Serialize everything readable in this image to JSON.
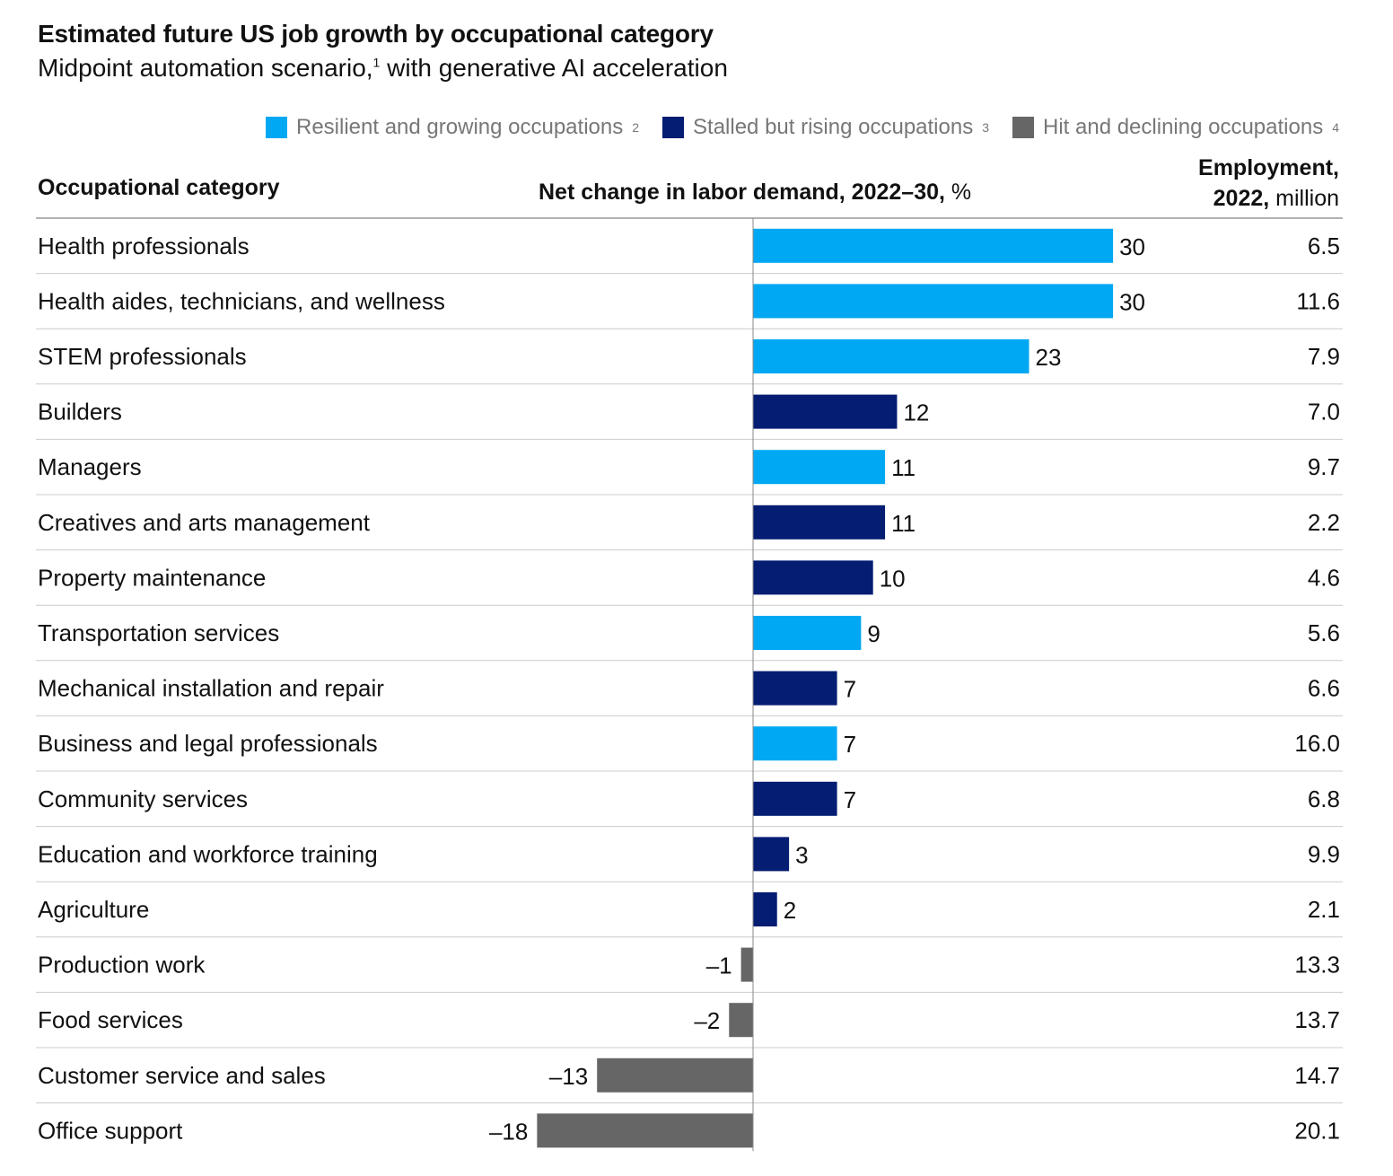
{
  "chart_data": {
    "type": "bar",
    "orientation": "horizontal",
    "title": "Estimated future US job growth by occupational category",
    "subtitle_main": "Midpoint automation scenario,",
    "subtitle_sup": "1",
    "subtitle_rest": " with generative AI acceleration",
    "legend": [
      {
        "label": "Resilient and growing occupations",
        "sup": "2",
        "color": "#00a8f3"
      },
      {
        "label": "Stalled but rising occupations",
        "sup": "3",
        "color": "#051d72"
      },
      {
        "label": "Hit and declining occupations",
        "sup": "4",
        "color": "#666666"
      }
    ],
    "legend_position": "top-right",
    "column_headers": {
      "category": "Occupational category",
      "net_change_bold": "Net change in labor demand, 2022–30,",
      "net_change_unit": " %",
      "employment_bold_1": "Employment,",
      "employment_bold_2": "2022,",
      "employment_unit": " million"
    },
    "rows": [
      {
        "category": "Health professionals",
        "value": 30,
        "label": "30",
        "group": 0,
        "employment": "6.5"
      },
      {
        "category": "Health aides, technicians, and wellness",
        "value": 30,
        "label": "30",
        "group": 0,
        "employment": "11.6"
      },
      {
        "category": "STEM professionals",
        "value": 23,
        "label": "23",
        "group": 0,
        "employment": "7.9"
      },
      {
        "category": "Builders",
        "value": 12,
        "label": "12",
        "group": 1,
        "employment": "7.0"
      },
      {
        "category": "Managers",
        "value": 11,
        "label": "11",
        "group": 0,
        "employment": "9.7"
      },
      {
        "category": "Creatives and arts management",
        "value": 11,
        "label": "11",
        "group": 1,
        "employment": "2.2"
      },
      {
        "category": "Property maintenance",
        "value": 10,
        "label": "10",
        "group": 1,
        "employment": "4.6"
      },
      {
        "category": "Transportation services",
        "value": 9,
        "label": "9",
        "group": 0,
        "employment": "5.6"
      },
      {
        "category": "Mechanical installation and repair",
        "value": 7,
        "label": "7",
        "group": 1,
        "employment": "6.6"
      },
      {
        "category": "Business and legal professionals",
        "value": 7,
        "label": "7",
        "group": 0,
        "employment": "16.0"
      },
      {
        "category": "Community services",
        "value": 7,
        "label": "7",
        "group": 1,
        "employment": "6.8"
      },
      {
        "category": "Education and workforce training",
        "value": 3,
        "label": "3",
        "group": 1,
        "employment": "9.9"
      },
      {
        "category": "Agriculture",
        "value": 2,
        "label": "2",
        "group": 1,
        "employment": "2.1"
      },
      {
        "category": "Production work",
        "value": -1,
        "label": "–1",
        "group": 2,
        "employment": "13.3"
      },
      {
        "category": "Food services",
        "value": -2,
        "label": "–2",
        "group": 2,
        "employment": "13.7"
      },
      {
        "category": "Customer service and sales",
        "value": -13,
        "label": "–13",
        "group": 2,
        "employment": "14.7"
      },
      {
        "category": "Office support",
        "value": -18,
        "label": "–18",
        "group": 2,
        "employment": "20.1"
      }
    ]
  }
}
